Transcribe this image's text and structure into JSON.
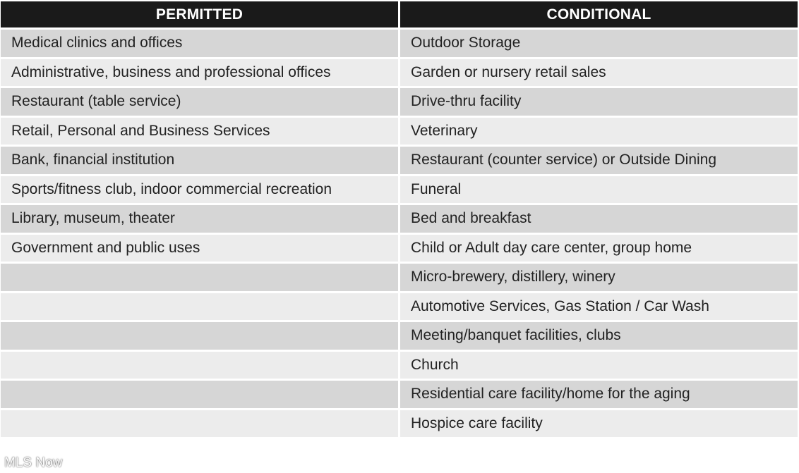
{
  "table": {
    "headers": {
      "permitted": "PERMITTED",
      "conditional": "CONDITIONAL"
    },
    "rows": [
      {
        "permitted": "Medical clinics and offices",
        "conditional": "Outdoor Storage"
      },
      {
        "permitted": "Administrative, business and professional offices",
        "conditional": "Garden or nursery retail sales"
      },
      {
        "permitted": "Restaurant (table service)",
        "conditional": "Drive-thru facility"
      },
      {
        "permitted": "Retail, Personal and Business Services",
        "conditional": "Veterinary"
      },
      {
        "permitted": "Bank, financial institution",
        "conditional": "Restaurant (counter service) or Outside Dining"
      },
      {
        "permitted": "Sports/fitness club, indoor commercial recreation",
        "conditional": "Funeral"
      },
      {
        "permitted": "Library, museum, theater",
        "conditional": "Bed and breakfast"
      },
      {
        "permitted": "Government and public uses",
        "conditional": "Child or Adult day care center, group home"
      },
      {
        "permitted": "",
        "conditional": "Micro-brewery, distillery, winery"
      },
      {
        "permitted": "",
        "conditional": "Automotive Services, Gas Station / Car Wash"
      },
      {
        "permitted": "",
        "conditional": "Meeting/banquet facilities, clubs"
      },
      {
        "permitted": "",
        "conditional": "Church"
      },
      {
        "permitted": "",
        "conditional": "Residential care facility/home for the aging"
      },
      {
        "permitted": "",
        "conditional": "Hospice care facility"
      }
    ]
  },
  "watermark": "MLS Now",
  "colors": {
    "header_bg": "#1a1a1a",
    "header_text": "#ffffff",
    "row_odd": "#d6d6d6",
    "row_even": "#ececec"
  }
}
